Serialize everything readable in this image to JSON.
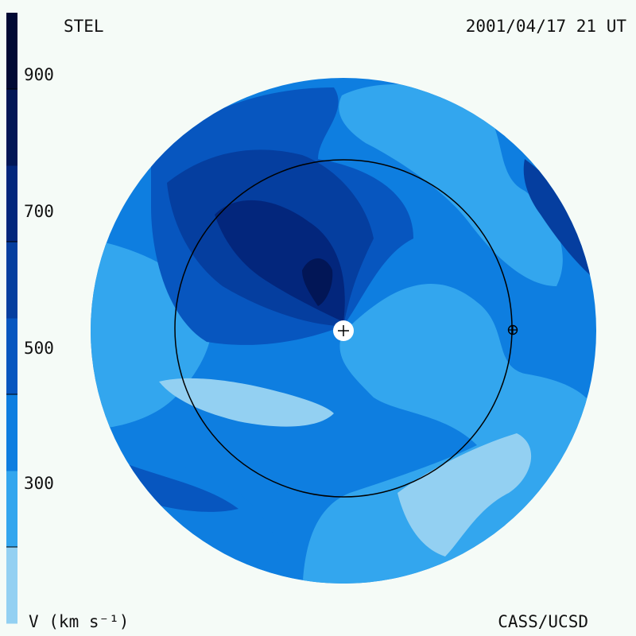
{
  "header": {
    "instrument": "STEL",
    "datetime": "2001/04/17 21 UT"
  },
  "footer": {
    "units_label": "V (km s⁻¹)",
    "credit": "CASS/UCSD"
  },
  "colorbar": {
    "ticks": [
      {
        "value": 900,
        "label": "900"
      },
      {
        "value": 700,
        "label": "700"
      },
      {
        "value": 500,
        "label": "500"
      },
      {
        "value": 300,
        "label": "300"
      }
    ],
    "range": [
      200,
      1000
    ],
    "levels": [
      {
        "from": 200,
        "to": 300,
        "color": "#93d0f2"
      },
      {
        "from": 300,
        "to": 400,
        "color": "#33a6ee"
      },
      {
        "from": 400,
        "to": 500,
        "color": "#0e7ee0"
      },
      {
        "from": 500,
        "to": 600,
        "color": "#0756bf"
      },
      {
        "from": 600,
        "to": 700,
        "color": "#053e9f"
      },
      {
        "from": 700,
        "to": 800,
        "color": "#03267c"
      },
      {
        "from": 800,
        "to": 900,
        "color": "#021656"
      },
      {
        "from": 900,
        "to": 1000,
        "color": "#010934"
      }
    ]
  }
}
